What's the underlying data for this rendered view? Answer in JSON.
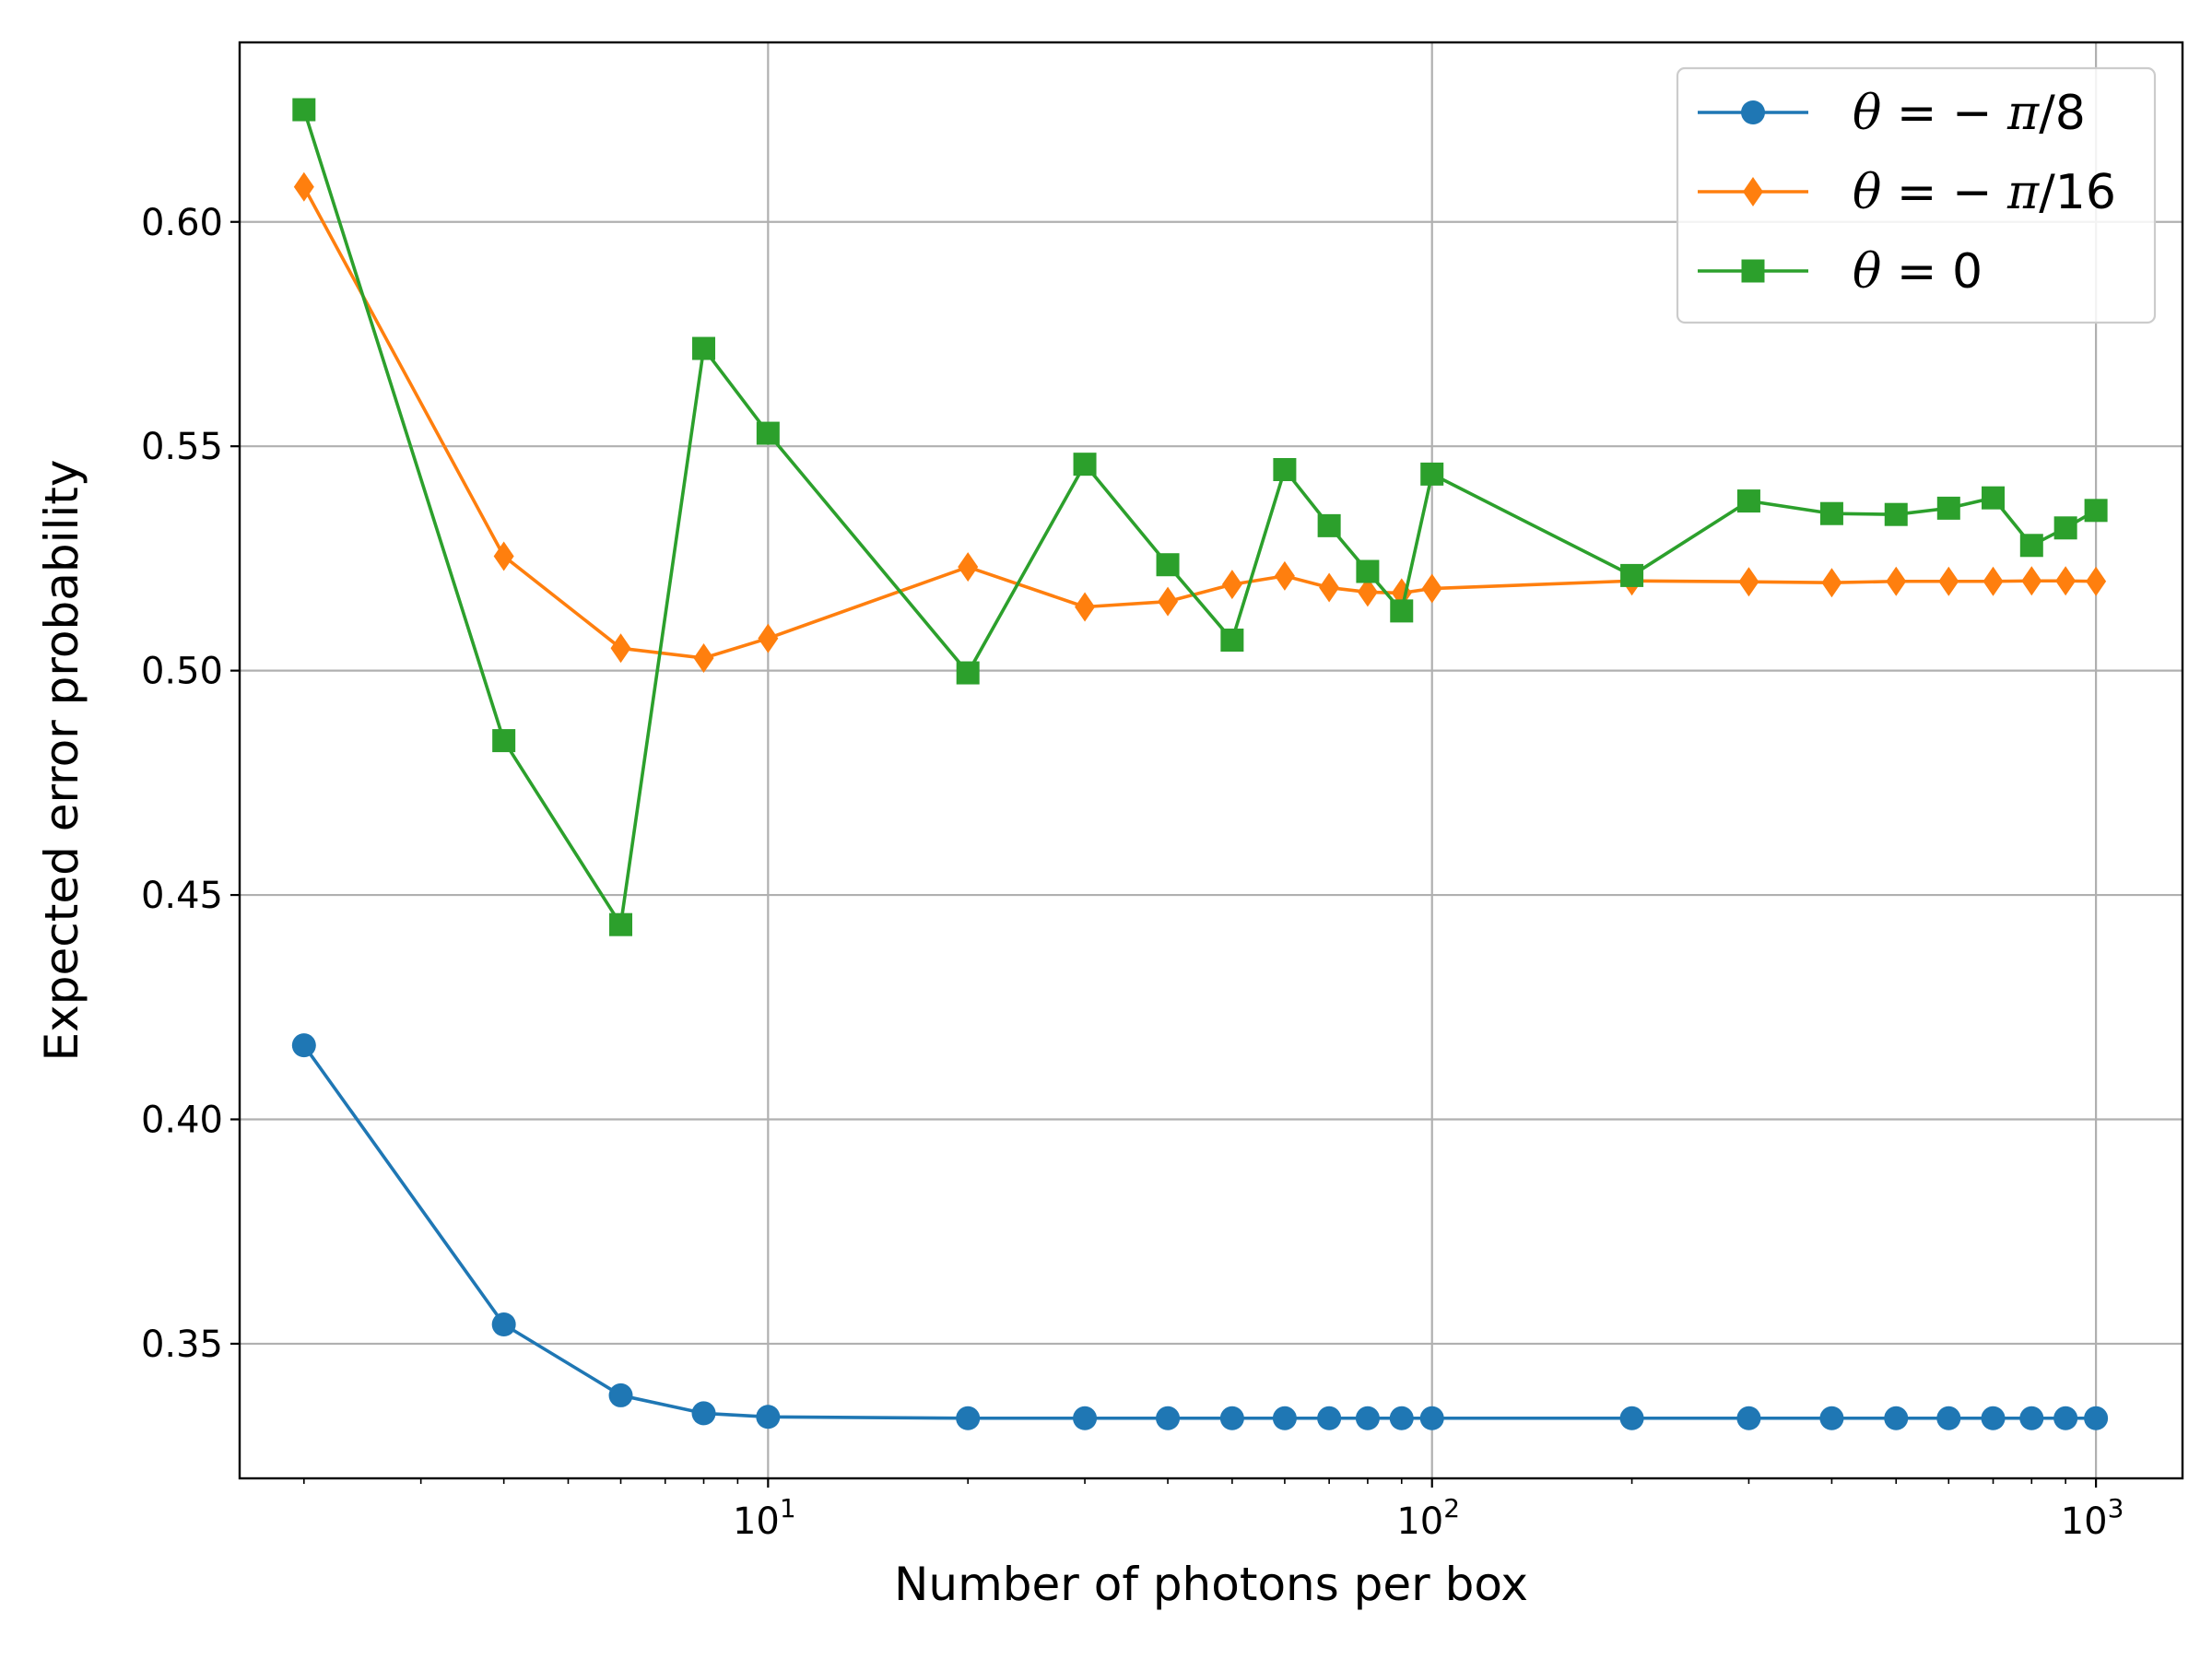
{
  "chart_data": {
    "type": "line",
    "title": "",
    "xlabel": "Number of photons per box",
    "ylabel": "Expected error probability",
    "xscale": "log",
    "xlim": [
      1.6,
      1350
    ],
    "ylim": [
      0.32,
      0.64
    ],
    "grid": true,
    "legend_position": "top-right",
    "x": [
      2,
      4,
      6,
      8,
      10,
      20,
      30,
      40,
      50,
      60,
      70,
      80,
      90,
      100,
      200,
      300,
      400,
      500,
      600,
      700,
      800,
      900,
      1000
    ],
    "x_ticks": [
      {
        "value": 10,
        "base": "10",
        "exp": "1"
      },
      {
        "value": 100,
        "base": "10",
        "exp": "2"
      },
      {
        "value": 1000,
        "base": "10",
        "exp": "3"
      }
    ],
    "y_ticks": [
      {
        "value": 0.35,
        "label": "0.35"
      },
      {
        "value": 0.4,
        "label": "0.40"
      },
      {
        "value": 0.45,
        "label": "0.45"
      },
      {
        "value": 0.5,
        "label": "0.50"
      },
      {
        "value": 0.55,
        "label": "0.55"
      },
      {
        "value": 0.6,
        "label": "0.60"
      }
    ],
    "series": [
      {
        "name": "θ = − π/8",
        "legend_parts": [
          {
            "text": "θ",
            "italic": true
          },
          {
            "text": " = − ",
            "italic": false
          },
          {
            "text": "π",
            "italic": true
          },
          {
            "text": "/8",
            "italic": false
          }
        ],
        "color": "#1f77b4",
        "marker": "circle",
        "values": [
          0.4165,
          0.3543,
          0.3385,
          0.3345,
          0.3337,
          0.3334,
          0.3334,
          0.3334,
          0.3334,
          0.3334,
          0.3334,
          0.3334,
          0.3334,
          0.3334,
          0.3334,
          0.3334,
          0.3334,
          0.3334,
          0.3334,
          0.3334,
          0.3334,
          0.3334,
          0.3334
        ]
      },
      {
        "name": "θ = − π/16",
        "legend_parts": [
          {
            "text": "θ",
            "italic": true
          },
          {
            "text": " = − ",
            "italic": false
          },
          {
            "text": "π",
            "italic": true
          },
          {
            "text": "/16",
            "italic": false
          }
        ],
        "color": "#ff7f0e",
        "marker": "diamond",
        "values": [
          0.6078,
          0.5255,
          0.505,
          0.5028,
          0.5072,
          0.5231,
          0.5142,
          0.5154,
          0.5192,
          0.5211,
          0.5185,
          0.5175,
          0.5173,
          0.5183,
          0.52,
          0.5198,
          0.5196,
          0.5199,
          0.5199,
          0.5199,
          0.52,
          0.52,
          0.5199
        ]
      },
      {
        "name": "θ = 0",
        "legend_parts": [
          {
            "text": "θ",
            "italic": true
          },
          {
            "text": " = 0",
            "italic": false
          }
        ],
        "color": "#2ca02c",
        "marker": "square",
        "values": [
          0.625,
          0.4844,
          0.4434,
          0.5718,
          0.5529,
          0.4995,
          0.546,
          0.5236,
          0.5068,
          0.5448,
          0.5323,
          0.5221,
          0.5133,
          0.5438,
          0.5212,
          0.5378,
          0.535,
          0.5348,
          0.5362,
          0.5385,
          0.5279,
          0.5318,
          0.5357
        ]
      }
    ]
  }
}
